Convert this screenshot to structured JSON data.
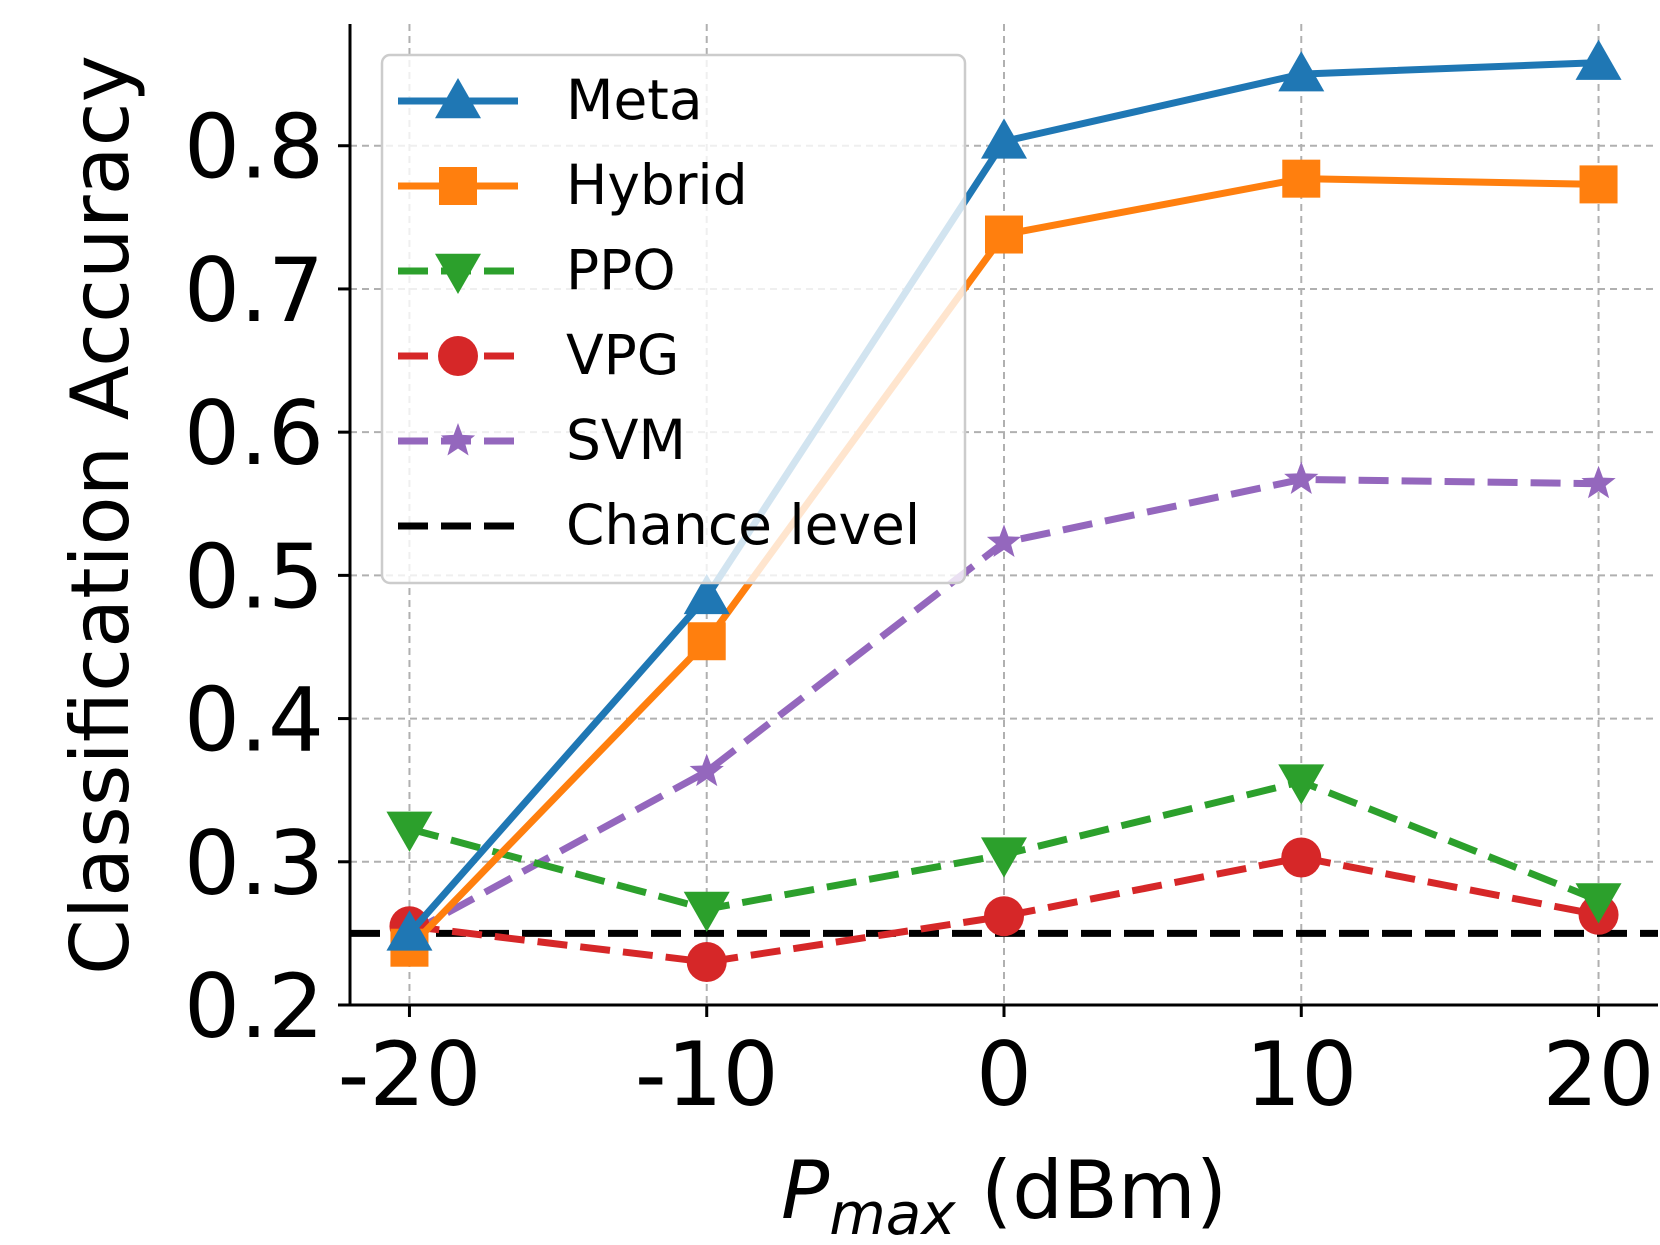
{
  "chart_data": {
    "type": "line",
    "x": [
      -20,
      -10,
      0,
      10,
      20
    ],
    "x_tick_labels": [
      "-20",
      "-10",
      "0",
      "10",
      "20"
    ],
    "y_ticks": [
      0.2,
      0.3,
      0.4,
      0.5,
      0.6,
      0.7,
      0.8
    ],
    "y_tick_labels": [
      "0.2",
      "0.3",
      "0.4",
      "0.5",
      "0.6",
      "0.7",
      "0.8"
    ],
    "xlim": [
      -22,
      22
    ],
    "ylim": [
      0.2,
      0.885
    ],
    "xlabel_main": "P",
    "xlabel_sub": "max",
    "xlabel_unit": " (dBm)",
    "ylabel": "Classification Accuracy",
    "grid": true,
    "legend_position": "top-left",
    "series": [
      {
        "name": "Meta",
        "values": [
          0.25,
          0.485,
          0.803,
          0.85,
          0.858
        ],
        "color": "#1f77b4",
        "marker": "triangle-up",
        "dash": "solid"
      },
      {
        "name": "Hybrid",
        "values": [
          0.24,
          0.454,
          0.738,
          0.777,
          0.773
        ],
        "color": "#ff7f0e",
        "marker": "square",
        "dash": "solid"
      },
      {
        "name": "PPO",
        "values": [
          0.323,
          0.267,
          0.305,
          0.356,
          0.273
        ],
        "color": "#2ca02c",
        "marker": "triangle-down",
        "dash": "dashed"
      },
      {
        "name": "VPG",
        "values": [
          0.255,
          0.23,
          0.262,
          0.303,
          0.263
        ],
        "color": "#d62728",
        "marker": "circle",
        "dash": "dashed"
      },
      {
        "name": "SVM",
        "values": [
          0.25,
          0.363,
          0.523,
          0.567,
          0.564
        ],
        "color": "#9467bd",
        "marker": "star",
        "dash": "dashed"
      }
    ],
    "reference_lines": [
      {
        "name": "Chance level",
        "y": 0.25,
        "color": "#000000",
        "dash": "dashed"
      }
    ]
  }
}
